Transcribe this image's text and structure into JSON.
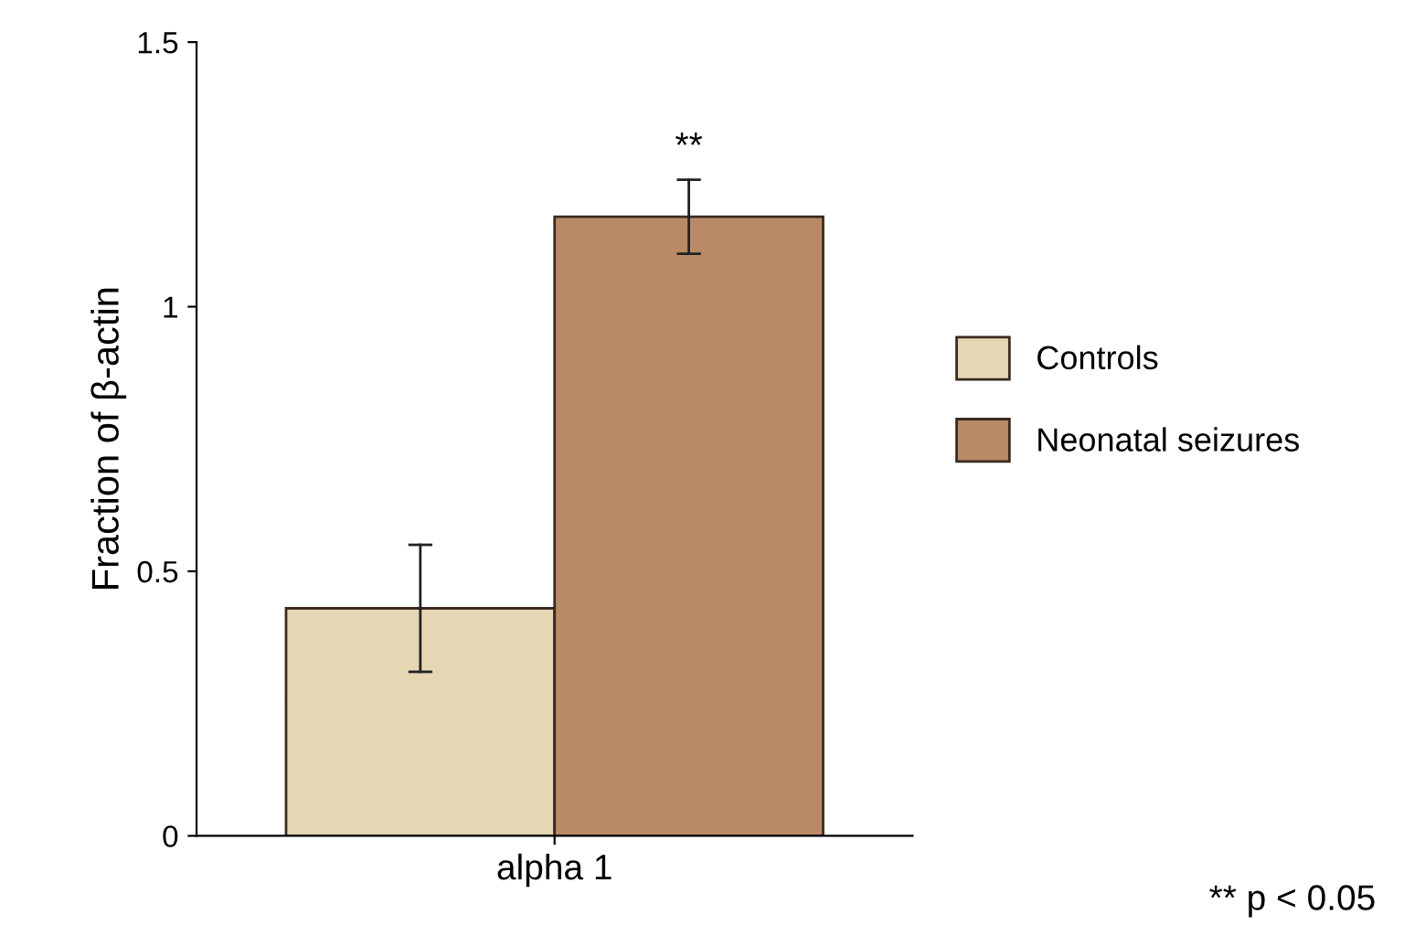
{
  "chart_data": {
    "type": "bar",
    "ylabel": "Fraction of β-actin",
    "categories": [
      "alpha 1"
    ],
    "series": [
      {
        "name": "Controls",
        "color": "#e6d7b4",
        "values": [
          0.43
        ],
        "errors": [
          [
            0.31,
            0.55
          ]
        ]
      },
      {
        "name": "Neonatal seizures",
        "color": "#b98a65",
        "values": [
          1.17
        ],
        "errors": [
          [
            1.1,
            1.24
          ]
        ]
      }
    ],
    "ylim": [
      0,
      1.5
    ],
    "yticks": [
      0,
      0.5,
      1,
      1.5
    ],
    "grid": false,
    "legend": "right",
    "annotations": [
      "**",
      "** p < 0.05"
    ]
  }
}
